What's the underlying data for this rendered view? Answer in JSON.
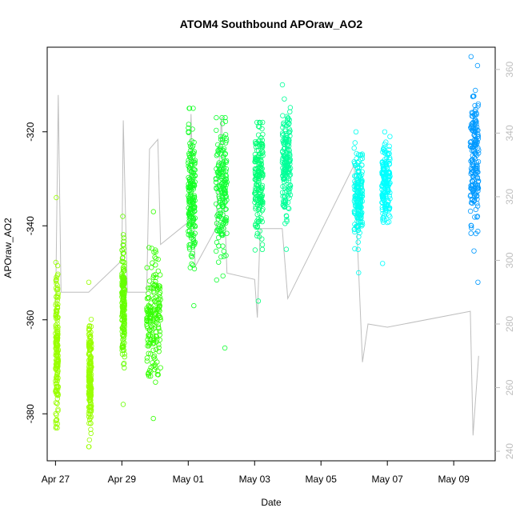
{
  "chart_data": {
    "type": "scatter",
    "title": "ATOM4 Southbound APOraw_AO2",
    "xlabel": "Date",
    "ylabel": "APOraw_AO2",
    "xlim": [
      "2018-04-26 18:00",
      "2018-05-10 06:00"
    ],
    "ylim_left": [
      -390,
      -302
    ],
    "ylim_right": [
      237,
      367
    ],
    "x_ticks": [
      {
        "date": "2018-04-27",
        "label": "Apr 27"
      },
      {
        "date": "2018-04-29",
        "label": "Apr 29"
      },
      {
        "date": "2018-05-01",
        "label": "May 01"
      },
      {
        "date": "2018-05-03",
        "label": "May 03"
      },
      {
        "date": "2018-05-05",
        "label": "May 05"
      },
      {
        "date": "2018-05-07",
        "label": "May 07"
      },
      {
        "date": "2018-05-09",
        "label": "May 09"
      }
    ],
    "y_ticks_left": [
      -320,
      -340,
      -360,
      -380
    ],
    "y_ticks_right": [
      240,
      260,
      280,
      300,
      320,
      340,
      360
    ],
    "series": [
      {
        "axis": "left",
        "style": "open circles colored by flight",
        "flights": [
          {
            "start": "2018-04-27 00:00",
            "end": "2018-04-27 02:00",
            "y_min": -383,
            "y_max": -334,
            "center": -366,
            "color": "#99FF00"
          },
          {
            "start": "2018-04-28 00:00",
            "end": "2018-04-28 02:00",
            "y_min": -387,
            "y_max": -352,
            "center": -372,
            "color": "#99FF00"
          },
          {
            "start": "2018-04-29 00:00",
            "end": "2018-04-29 02:00",
            "y_min": -378,
            "y_max": -338,
            "center": -357,
            "color": "#66FF00"
          },
          {
            "start": "2018-04-29 18:00",
            "end": "2018-04-30 04:00",
            "y_min": -381,
            "y_max": -337,
            "center": -360,
            "color": "#33FF00"
          },
          {
            "start": "2018-05-01 00:00",
            "end": "2018-05-01 05:00",
            "y_min": -357,
            "y_max": -315,
            "center": -333,
            "color": "#11FF22"
          },
          {
            "start": "2018-05-01 20:00",
            "end": "2018-05-02 04:00",
            "y_min": -366,
            "y_max": -317,
            "center": -332,
            "color": "#11FF33"
          },
          {
            "start": "2018-05-03 00:00",
            "end": "2018-05-03 06:00",
            "y_min": -356,
            "y_max": -318,
            "center": -330,
            "color": "#00FF77"
          },
          {
            "start": "2018-05-03 20:00",
            "end": "2018-05-04 02:00",
            "y_min": -345,
            "y_max": -310,
            "center": -326,
            "color": "#00FF99"
          },
          {
            "start": "2018-05-06 00:00",
            "end": "2018-05-06 06:00",
            "y_min": -350,
            "y_max": -320,
            "center": -334,
            "color": "#00FFEE"
          },
          {
            "start": "2018-05-06 20:00",
            "end": "2018-05-07 02:00",
            "y_min": -348,
            "y_max": -320,
            "center": -331,
            "color": "#00FFFF"
          },
          {
            "start": "2018-05-09 12:00",
            "end": "2018-05-09 18:00",
            "y_min": -352,
            "y_max": -304,
            "center": -326,
            "color": "#0099FF"
          }
        ]
      },
      {
        "axis": "right",
        "style": "gray line",
        "color": "#BEBEBE",
        "points": [
          [
            "2018-04-27 00:00",
            282
          ],
          [
            "2018-04-27 02:00",
            352
          ],
          [
            "2018-04-27 04:00",
            290
          ],
          [
            "2018-04-28 00:00",
            290
          ],
          [
            "2018-04-29 00:00",
            300
          ],
          [
            "2018-04-29 01:00",
            344
          ],
          [
            "2018-04-29 04:00",
            290
          ],
          [
            "2018-04-29 18:00",
            290
          ],
          [
            "2018-04-29 20:00",
            335
          ],
          [
            "2018-04-30 02:00",
            338
          ],
          [
            "2018-04-30 04:00",
            305
          ],
          [
            "2018-05-01 00:00",
            312
          ],
          [
            "2018-05-01 02:00",
            346
          ],
          [
            "2018-05-01 05:00",
            298
          ],
          [
            "2018-05-01 20:00",
            310
          ],
          [
            "2018-05-02 00:00",
            345
          ],
          [
            "2018-05-02 04:00",
            296
          ],
          [
            "2018-05-03 00:00",
            294
          ],
          [
            "2018-05-03 02:00",
            282
          ],
          [
            "2018-05-03 04:00",
            310
          ],
          [
            "2018-05-03 20:00",
            310
          ],
          [
            "2018-05-04 00:00",
            288
          ],
          [
            "2018-05-06 00:00",
            330
          ],
          [
            "2018-05-06 06:00",
            268
          ],
          [
            "2018-05-06 10:00",
            280
          ],
          [
            "2018-05-07 00:00",
            279
          ],
          [
            "2018-05-09 12:00",
            284
          ],
          [
            "2018-05-09 14:00",
            245
          ],
          [
            "2018-05-09 18:00",
            270
          ]
        ]
      }
    ],
    "grid": false,
    "legend": "none"
  }
}
